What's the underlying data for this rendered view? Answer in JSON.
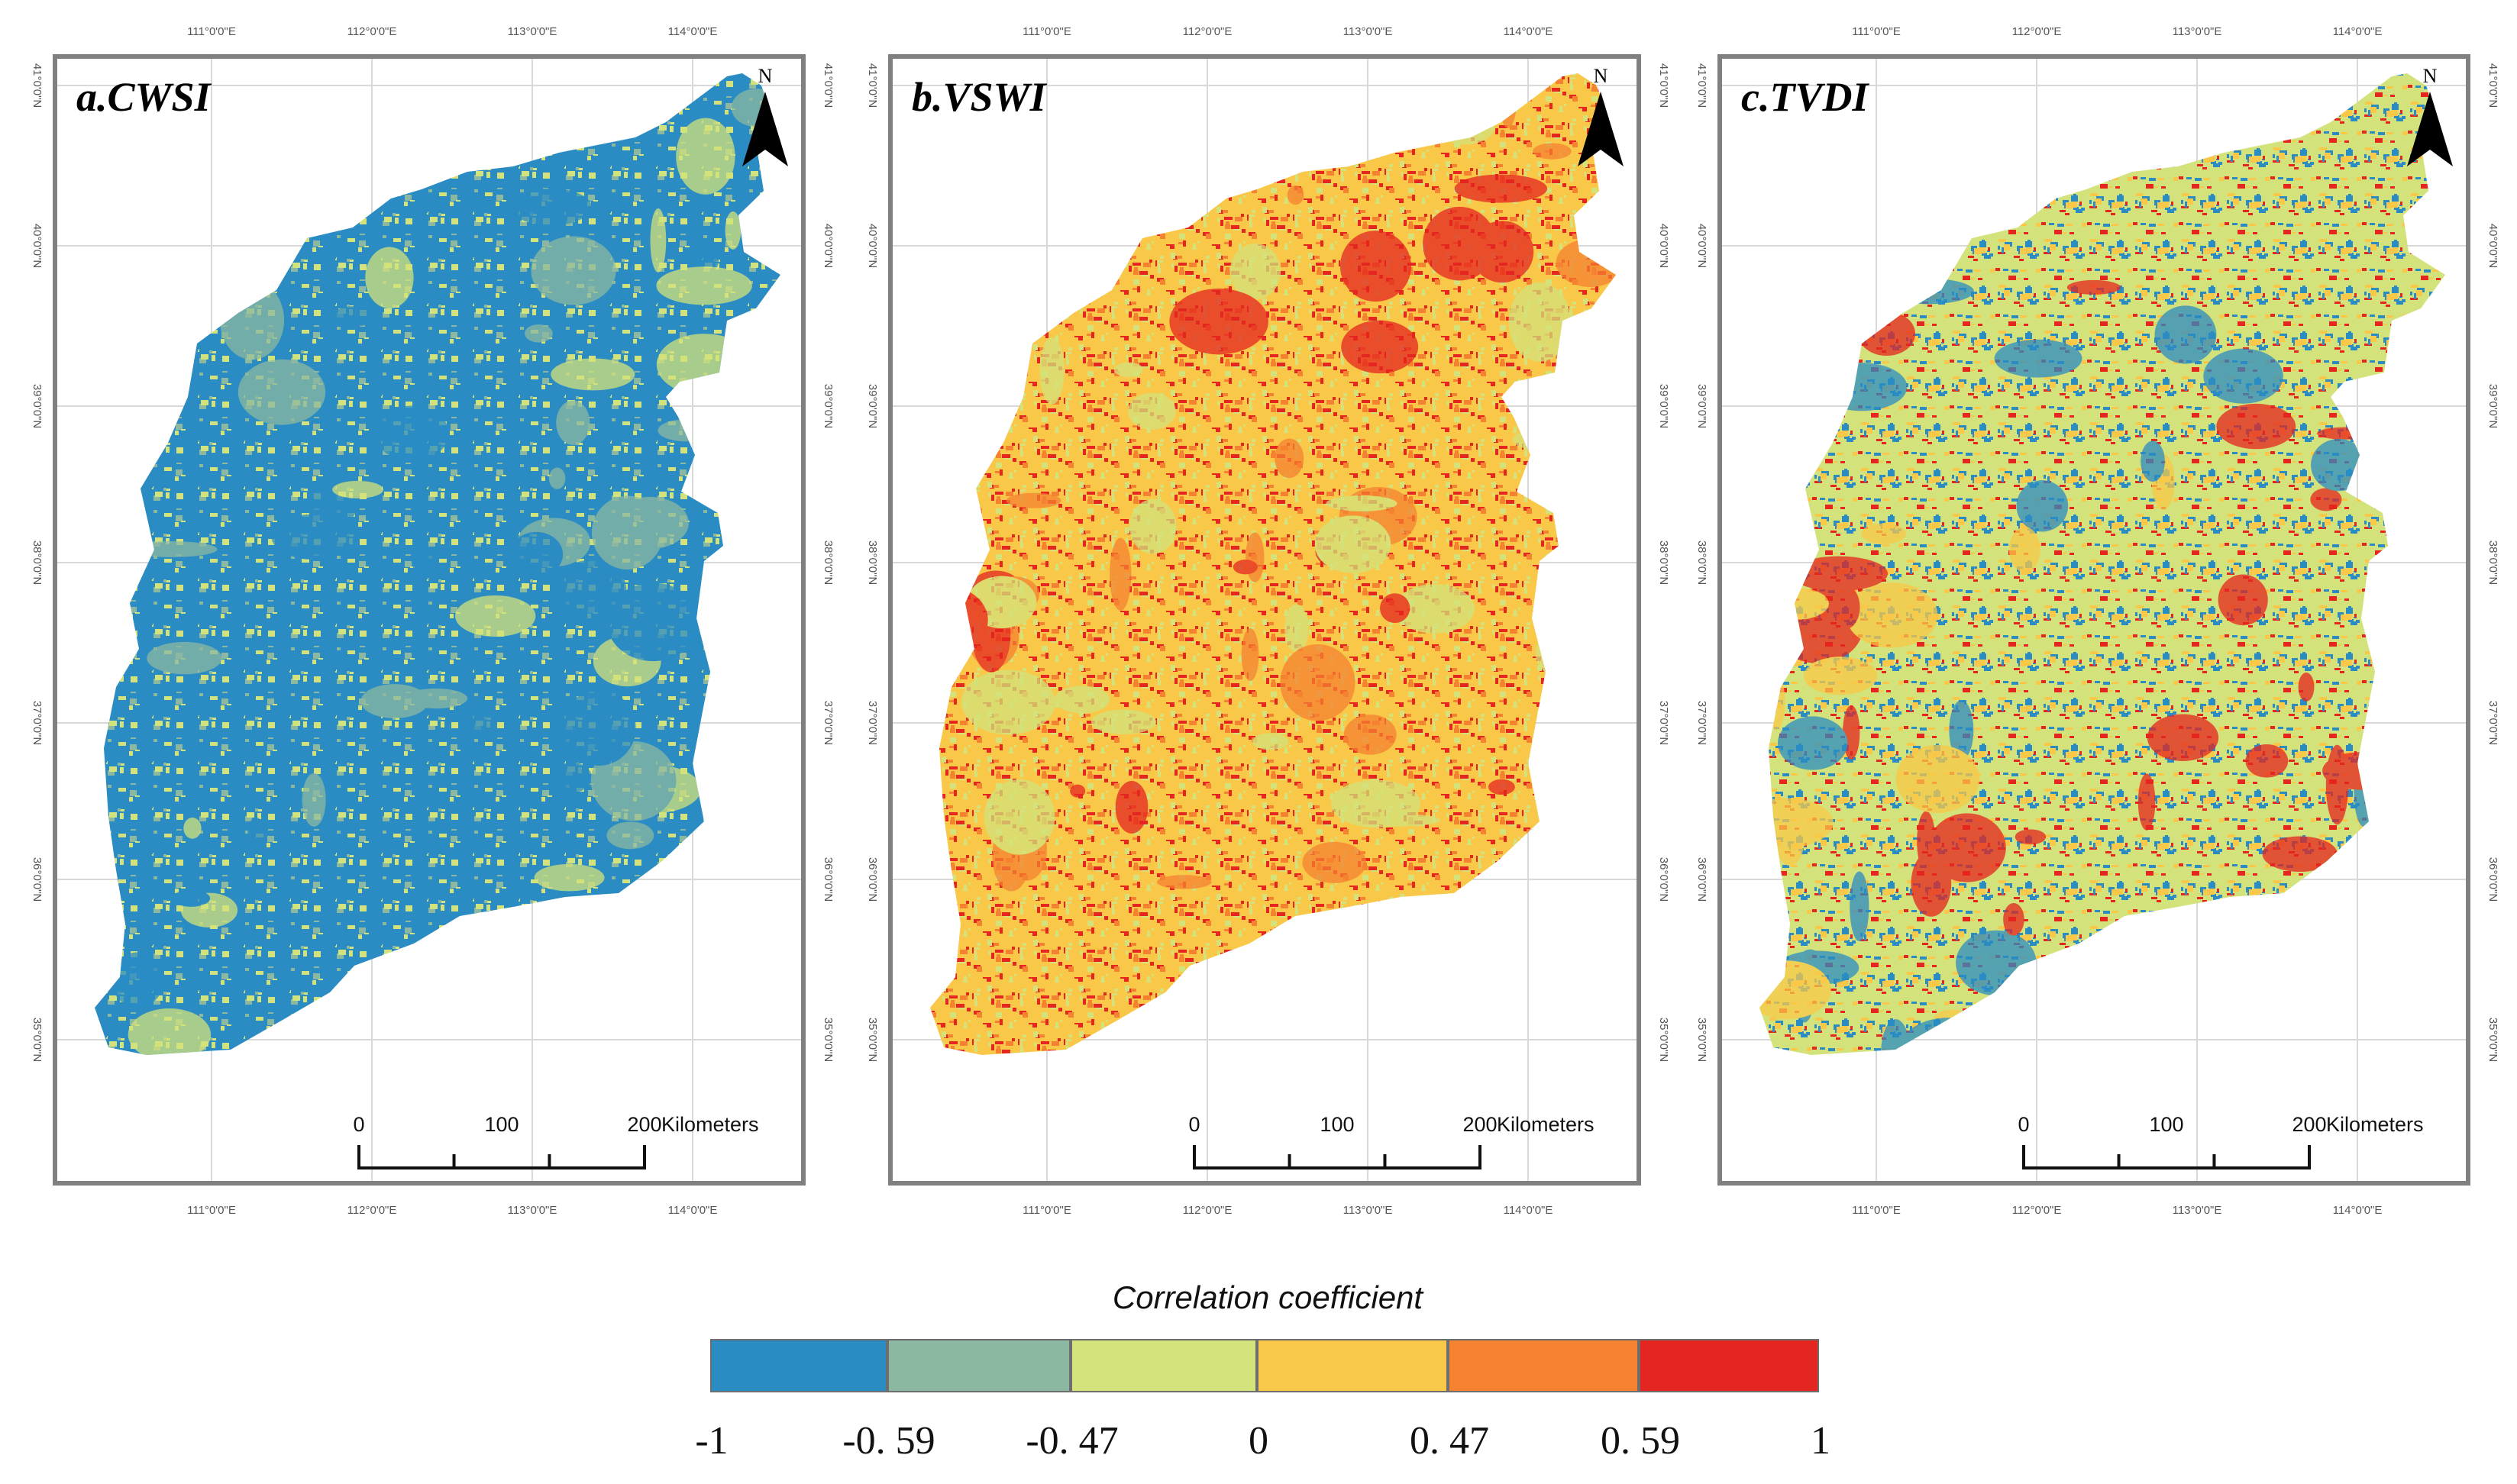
{
  "panels": [
    {
      "title": "a.CWSI",
      "north_label": "N",
      "lon_labels": [
        "111°0'0\"E",
        "112°0'0\"E",
        "113°0'0\"E",
        "114°0'0\"E"
      ],
      "lat_labels": [
        "41°0'0\"N",
        "40°0'0\"N",
        "39°0'0\"N",
        "38°0'0\"N",
        "37°0'0\"N",
        "36°0'0\"N",
        "35°0'0\"N"
      ],
      "scale_labels": [
        "0",
        "100",
        "200"
      ],
      "scale_unit": "Kilometers",
      "base_color": "#2b8cc4",
      "mix_colors": [
        "#d3e27a",
        "#2b8cc4",
        "#8cb8a1"
      ]
    },
    {
      "title": "b.VSWI",
      "north_label": "N",
      "lon_labels": [
        "111°0'0\"E",
        "112°0'0\"E",
        "113°0'0\"E",
        "114°0'0\"E"
      ],
      "lat_labels": [
        "41°0'0\"N",
        "40°0'0\"N",
        "39°0'0\"N",
        "38°0'0\"N",
        "37°0'0\"N",
        "36°0'0\"N",
        "35°0'0\"N"
      ],
      "scale_labels": [
        "0",
        "100",
        "200"
      ],
      "scale_unit": "Kilometers",
      "base_color": "#f9c848",
      "mix_colors": [
        "#f58231",
        "#e5251f",
        "#d3e27a"
      ]
    },
    {
      "title": "c.TVDI",
      "north_label": "N",
      "lon_labels": [
        "111°0'0\"E",
        "112°0'0\"E",
        "113°0'0\"E",
        "114°0'0\"E"
      ],
      "lat_labels": [
        "41°0'0\"N",
        "40°0'0\"N",
        "39°0'0\"N",
        "38°0'0\"N",
        "37°0'0\"N",
        "36°0'0\"N",
        "35°0'0\"N"
      ],
      "scale_labels": [
        "0",
        "100",
        "200"
      ],
      "scale_unit": "Kilometers",
      "base_color": "#d3e27a",
      "mix_colors": [
        "#f9c848",
        "#2b8cc4",
        "#e5251f"
      ]
    }
  ],
  "legend": {
    "title": "Correlation coefficient",
    "classes": [
      {
        "from": -1,
        "to": -0.59,
        "color": "#2b8cc4"
      },
      {
        "from": -0.59,
        "to": -0.47,
        "color": "#8cb8a1"
      },
      {
        "from": -0.47,
        "to": 0,
        "color": "#d3e27a"
      },
      {
        "from": 0,
        "to": 0.47,
        "color": "#f9c848"
      },
      {
        "from": 0.47,
        "to": 0.59,
        "color": "#f58231"
      },
      {
        "from": 0.59,
        "to": 1,
        "color": "#e5251f"
      }
    ],
    "tick_labels": [
      "-1",
      "-0. 59",
      "-0. 47",
      "0",
      "0. 47",
      "0. 59",
      "1"
    ]
  }
}
